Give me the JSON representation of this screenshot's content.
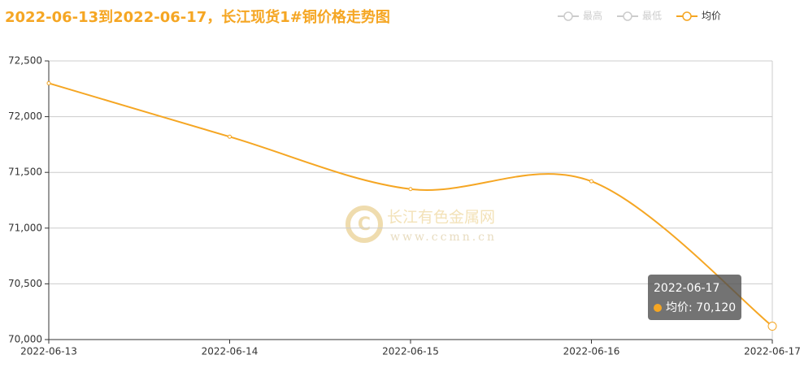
{
  "chart_data": {
    "type": "line",
    "title": "2022-06-13到2022-06-17，长江现货1#铜价格走势图",
    "categories": [
      "2022-06-13",
      "2022-06-14",
      "2022-06-15",
      "2022-06-16",
      "2022-06-17"
    ],
    "series": [
      {
        "name": "最高",
        "color": "#cccccc",
        "visible": false,
        "values": [
          null,
          null,
          null,
          null,
          null
        ]
      },
      {
        "name": "最低",
        "color": "#cccccc",
        "visible": false,
        "values": [
          null,
          null,
          null,
          null,
          null
        ]
      },
      {
        "name": "均价",
        "color": "#f5a623",
        "visible": true,
        "values": [
          72300,
          71820,
          71350,
          71420,
          70120
        ]
      }
    ],
    "ylim": [
      70000,
      72500
    ],
    "yticks": [
      {
        "value": 70000,
        "label": "70,000"
      },
      {
        "value": 70500,
        "label": "70,500"
      },
      {
        "value": 71000,
        "label": "71,000"
      },
      {
        "value": 71500,
        "label": "71,500"
      },
      {
        "value": 72000,
        "label": "72,000"
      },
      {
        "value": 72500,
        "label": "72,500"
      }
    ],
    "grid": true,
    "smooth": true,
    "tooltip": {
      "series": 2,
      "index": 4,
      "label": "均价: 70,120"
    },
    "watermark": {
      "name": "长江有色金属网",
      "url": "www.ccmn.cn"
    }
  }
}
